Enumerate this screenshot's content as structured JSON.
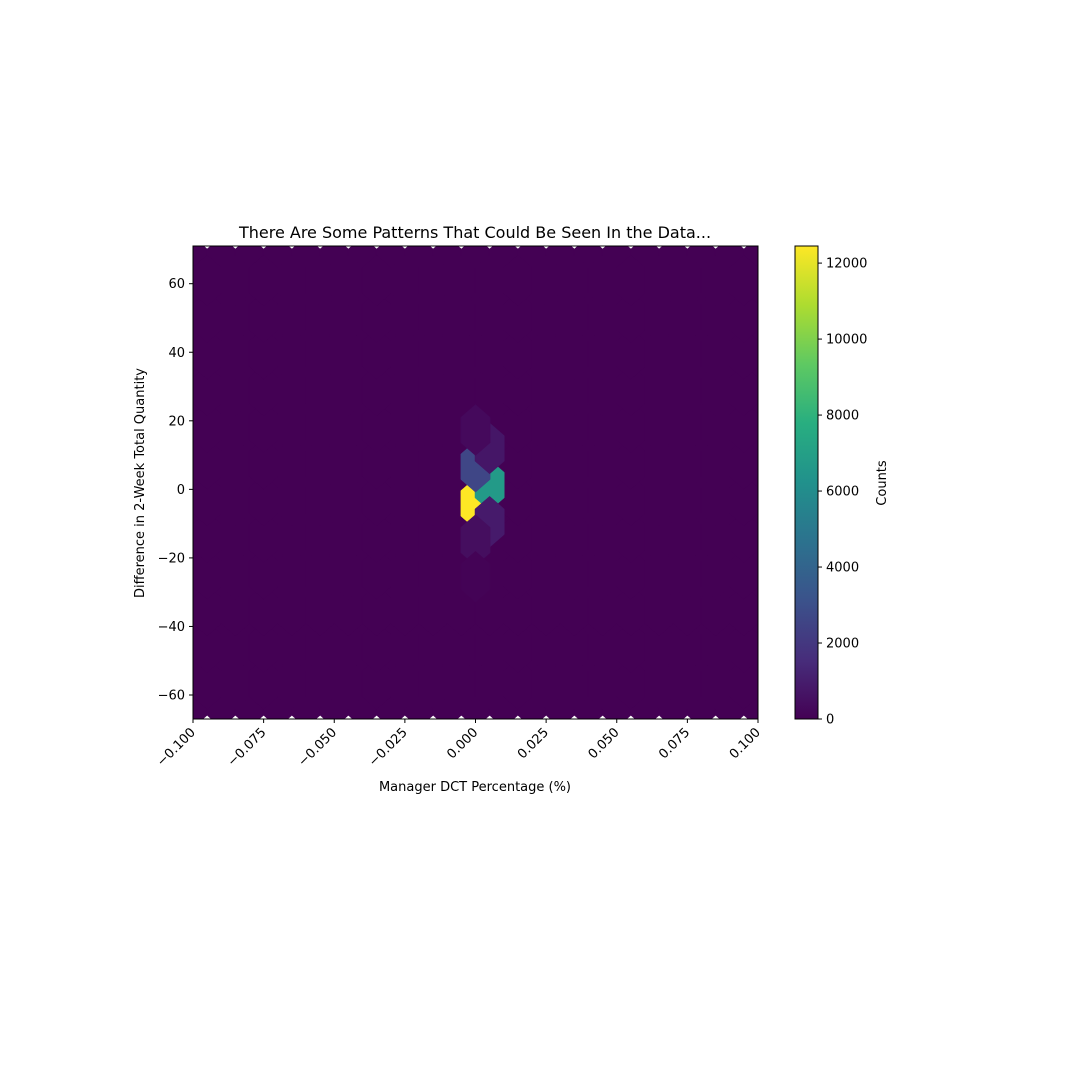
{
  "chart_data": {
    "type": "heatmap",
    "subtype": "hexbin",
    "title": "There Are Some Patterns That Could Be Seen In the Data...",
    "xlabel": "Manager DCT Percentage (%)",
    "ylabel": "Difference in 2-Week Total Quantity",
    "xlim": [
      -0.1,
      0.1
    ],
    "ylim": [
      -67,
      71
    ],
    "x_ticks": [
      -0.1,
      -0.075,
      -0.05,
      -0.025,
      0.0,
      0.025,
      0.05,
      0.075,
      0.1
    ],
    "x_tick_labels": [
      "−0.100",
      "−0.075",
      "−0.050",
      "−0.025",
      "0.000",
      "0.025",
      "0.050",
      "0.075",
      "0.100"
    ],
    "y_ticks": [
      -60,
      -40,
      -20,
      0,
      20,
      40,
      60
    ],
    "y_tick_labels": [
      "−60",
      "−40",
      "−20",
      "0",
      "20",
      "40",
      "60"
    ],
    "x_tick_rotation_deg": -45,
    "grid": false,
    "colormap": "viridis",
    "hex_grid": {
      "x_start": -0.1,
      "x_step": 0.01,
      "x_count": 21,
      "y_start": -62.1,
      "y_step": 10.7,
      "y_count": 13,
      "background_count": 0
    },
    "hexbins": [
      {
        "x": 0.0,
        "y": -4.1,
        "count": 12450
      },
      {
        "x": 0.005,
        "y": 1.25,
        "count": 6700
      },
      {
        "x": 0.0,
        "y": 6.6,
        "count": 2600
      },
      {
        "x": 0.005,
        "y": 11.95,
        "count": 750
      },
      {
        "x": 0.0,
        "y": 17.3,
        "count": 300
      },
      {
        "x": 0.005,
        "y": -9.45,
        "count": 900
      },
      {
        "x": 0.0,
        "y": -14.8,
        "count": 450
      },
      {
        "x": 0.0,
        "y": -25.5,
        "count": 60
      }
    ],
    "colorbar": {
      "label": "Counts",
      "min": 0,
      "max": 12450,
      "ticks": [
        0,
        2000,
        4000,
        6000,
        8000,
        10000,
        12000
      ],
      "tick_labels": [
        "0",
        "2000",
        "4000",
        "6000",
        "8000",
        "10000",
        "12000"
      ]
    }
  }
}
